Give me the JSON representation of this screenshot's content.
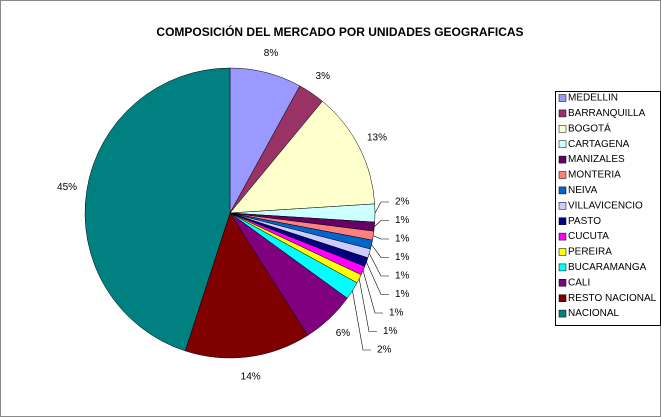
{
  "chart_data": {
    "type": "pie",
    "title": "COMPOSICIÓN DEL MERCADO POR UNIDADES GEOGRAFICAS",
    "categories": [
      "MEDELLIN",
      "BARRANQUILLA",
      "BOGOTÁ",
      "CARTAGENA",
      "MANIZALES",
      "MONTERIA",
      "NEIVA",
      "VILLAVICENCIO",
      "PASTO",
      "CUCUTA",
      "PEREIRA",
      "BUCARAMANGA",
      "CALI",
      "RESTO NACIONAL",
      "NACIONAL"
    ],
    "values": [
      8,
      3,
      13,
      2,
      1,
      1,
      1,
      1,
      1,
      1,
      1,
      2,
      6,
      14,
      45
    ],
    "value_labels": [
      "8%",
      "3%",
      "13%",
      "2%",
      "1%",
      "1%",
      "1%",
      "1%",
      "1%",
      "1%",
      "1%",
      "2%",
      "6%",
      "14%",
      "45%"
    ],
    "colors": [
      "#9999ff",
      "#993366",
      "#ffffcc",
      "#ccffff",
      "#660066",
      "#ff8080",
      "#0066cc",
      "#ccccff",
      "#000080",
      "#ff00ff",
      "#ffff00",
      "#00ffff",
      "#800080",
      "#800000",
      "#008080"
    ],
    "legend": "right"
  }
}
